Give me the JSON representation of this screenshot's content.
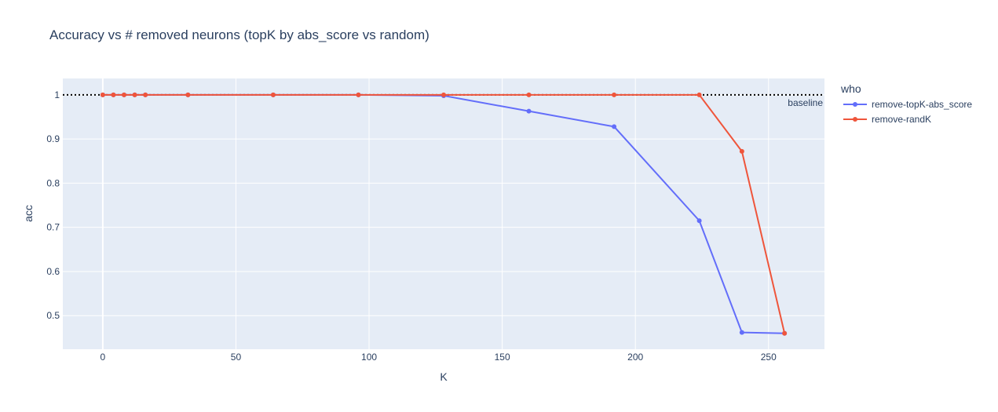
{
  "chart_data": {
    "type": "line",
    "title": "Accuracy vs # removed neurons (topK by abs_score vs random)",
    "xlabel": "K",
    "ylabel": "acc",
    "xlim": [
      -15,
      271
    ],
    "ylim": [
      0.424,
      1.037
    ],
    "x_ticks": [
      0,
      50,
      100,
      150,
      200,
      250
    ],
    "y_ticks": [
      0.5,
      0.6,
      0.7,
      0.8,
      0.9,
      1
    ],
    "x_tick_labels": [
      "0",
      "50",
      "100",
      "150",
      "200",
      "250"
    ],
    "y_tick_labels": [
      "0.5",
      "0.6",
      "0.7",
      "0.8",
      "0.9",
      "1"
    ],
    "grid": true,
    "legend_title": "who",
    "legend_position": "right",
    "series": [
      {
        "name": "remove-topK-abs_score",
        "color": "#636efa",
        "x": [
          0,
          4,
          8,
          12,
          16,
          32,
          64,
          96,
          128,
          160,
          192,
          224,
          240,
          256
        ],
        "y": [
          1.0,
          1.0,
          1.0,
          1.0,
          1.0,
          1.0,
          1.0,
          1.0,
          0.998,
          0.963,
          0.928,
          0.715,
          0.462,
          0.46
        ]
      },
      {
        "name": "remove-randK",
        "color": "#ef553b",
        "x": [
          0,
          4,
          8,
          12,
          16,
          32,
          64,
          96,
          128,
          160,
          192,
          224,
          240,
          256
        ],
        "y": [
          1.0,
          1.0,
          1.0,
          1.0,
          1.0,
          1.0,
          1.0,
          1.0,
          1.0,
          1.0,
          1.0,
          1.0,
          0.872,
          0.46
        ]
      }
    ],
    "reference_line": {
      "y": 1.0,
      "style": "dotted",
      "color": "#000000",
      "label": "baseline"
    }
  }
}
